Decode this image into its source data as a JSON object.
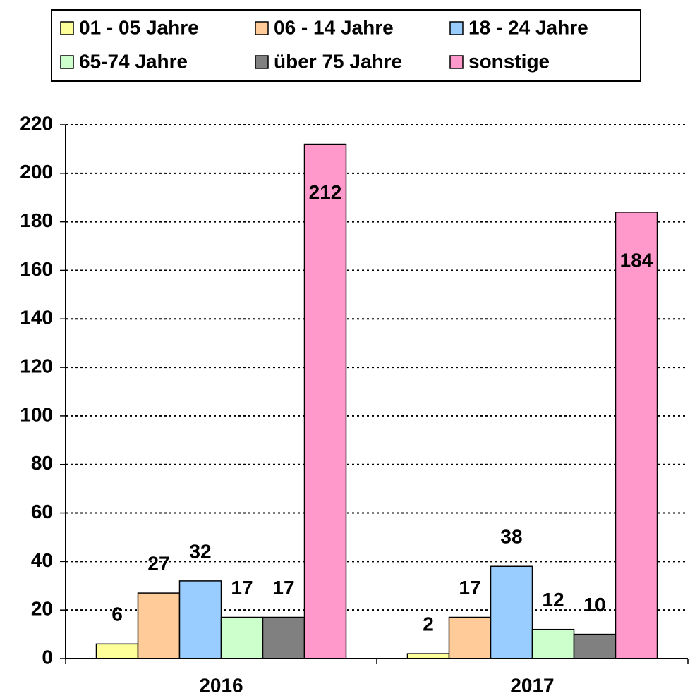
{
  "chart_data": {
    "type": "bar",
    "categories": [
      "2016",
      "2017"
    ],
    "series": [
      {
        "name": "01 - 05 Jahre",
        "color": "#ffff99",
        "values": [
          6,
          2
        ]
      },
      {
        "name": "06 - 14 Jahre",
        "color": "#ffcc99",
        "values": [
          27,
          17
        ]
      },
      {
        "name": "18 - 24 Jahre",
        "color": "#99ccff",
        "values": [
          32,
          38
        ]
      },
      {
        "name": "65-74 Jahre",
        "color": "#ccffcc",
        "values": [
          17,
          12
        ]
      },
      {
        "name": "über 75 Jahre",
        "color": "#808080",
        "values": [
          17,
          10
        ]
      },
      {
        "name": "sonstige",
        "color": "#ff99cc",
        "values": [
          212,
          184
        ]
      }
    ],
    "ylim": [
      0,
      220
    ],
    "yticks": [
      0,
      20,
      40,
      60,
      80,
      100,
      120,
      140,
      160,
      180,
      200,
      220
    ],
    "grid": true,
    "legend": "top"
  }
}
